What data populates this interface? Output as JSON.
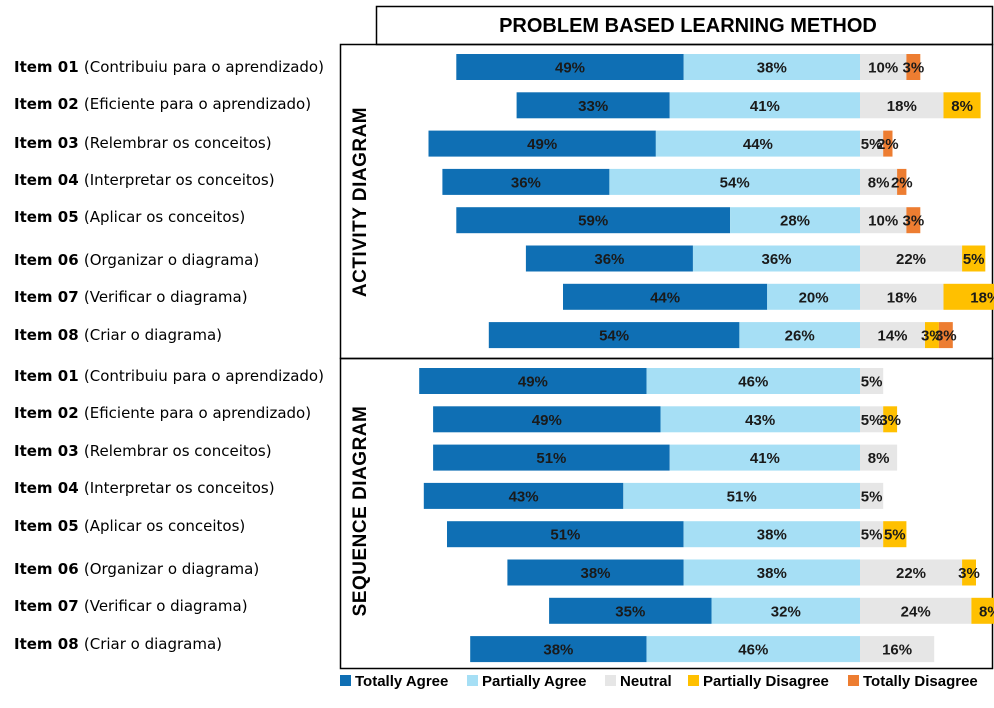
{
  "chart_data": {
    "type": "bar",
    "title": "PROBLEM BASED LEARNING METHOD",
    "categories": [
      {
        "num": "Item 01",
        "desc": "(Contribuiu para o aprendizado)"
      },
      {
        "num": "Item 02",
        "desc": "(Eficiente para o aprendizado)"
      },
      {
        "num": "Item 03",
        "desc": "(Relembrar os conceitos)"
      },
      {
        "num": "Item 04",
        "desc": "(Interpretar os conceitos)"
      },
      {
        "num": "Item 05",
        "desc": "(Aplicar os conceitos)"
      },
      {
        "num": "Item 06",
        "desc": "(Organizar o diagrama)"
      },
      {
        "num": "Item 07",
        "desc": "(Verificar o diagrama)"
      },
      {
        "num": "Item 08",
        "desc": "(Criar o diagrama)"
      }
    ],
    "series_names": [
      "Totally Agree",
      "Partially Agree",
      "Neutral",
      "Partially Disagree",
      "Totally Disagree"
    ],
    "colors": [
      "#0f6fb4",
      "#a6dff5",
      "#e6e6e6",
      "#ffc000",
      "#ed7d31"
    ],
    "groups": [
      {
        "name": "ACTIVITY DIAGRAM",
        "rows": [
          [
            49,
            38,
            10,
            0,
            3
          ],
          [
            33,
            41,
            18,
            8,
            0
          ],
          [
            49,
            44,
            5,
            0,
            2
          ],
          [
            36,
            54,
            8,
            0,
            2
          ],
          [
            59,
            28,
            10,
            0,
            3
          ],
          [
            36,
            36,
            22,
            5,
            0
          ],
          [
            44,
            20,
            18,
            18,
            0
          ],
          [
            54,
            26,
            14,
            3,
            3
          ]
        ]
      },
      {
        "name": "SEQUENCE DIAGRAM",
        "rows": [
          [
            49,
            46,
            5,
            0,
            0
          ],
          [
            49,
            43,
            5,
            3,
            0
          ],
          [
            51,
            41,
            8,
            0,
            0
          ],
          [
            43,
            51,
            5,
            0,
            0
          ],
          [
            51,
            38,
            5,
            5,
            0
          ],
          [
            38,
            38,
            22,
            3,
            0
          ],
          [
            35,
            32,
            24,
            8,
            0
          ],
          [
            38,
            46,
            16,
            0,
            0
          ]
        ]
      }
    ],
    "xlim": [
      0,
      100
    ],
    "legend_position": "bottom",
    "grid": false
  }
}
